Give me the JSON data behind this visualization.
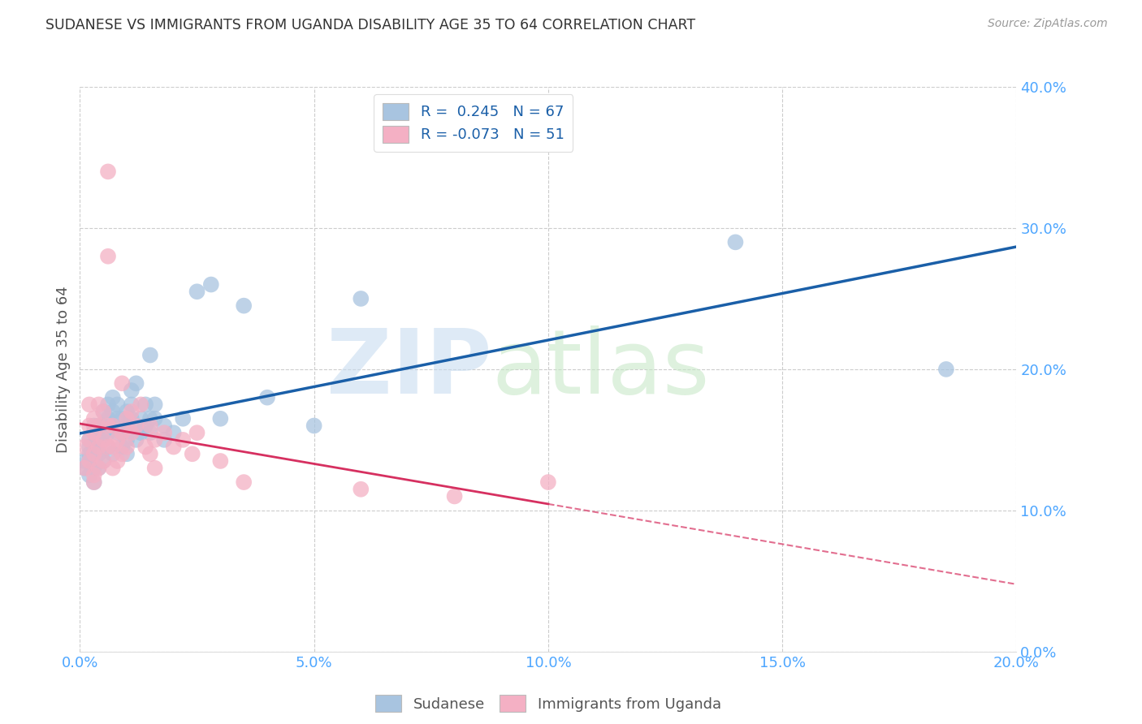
{
  "title": "SUDANESE VS IMMIGRANTS FROM UGANDA DISABILITY AGE 35 TO 64 CORRELATION CHART",
  "source": "Source: ZipAtlas.com",
  "ylabel": "Disability Age 35 to 64",
  "xlim": [
    0.0,
    0.2
  ],
  "ylim": [
    0.0,
    0.4
  ],
  "xticks": [
    0.0,
    0.05,
    0.1,
    0.15,
    0.2
  ],
  "yticks": [
    0.0,
    0.1,
    0.2,
    0.3,
    0.4
  ],
  "legend": {
    "blue_R": 0.245,
    "blue_N": 67,
    "pink_R": -0.073,
    "pink_N": 51
  },
  "blue_scatter_x": [
    0.001,
    0.001,
    0.002,
    0.002,
    0.002,
    0.002,
    0.002,
    0.003,
    0.003,
    0.003,
    0.003,
    0.003,
    0.004,
    0.004,
    0.004,
    0.004,
    0.004,
    0.005,
    0.005,
    0.005,
    0.005,
    0.006,
    0.006,
    0.006,
    0.006,
    0.007,
    0.007,
    0.007,
    0.007,
    0.008,
    0.008,
    0.008,
    0.009,
    0.009,
    0.009,
    0.01,
    0.01,
    0.01,
    0.01,
    0.011,
    0.011,
    0.011,
    0.012,
    0.012,
    0.012,
    0.013,
    0.013,
    0.014,
    0.014,
    0.015,
    0.015,
    0.015,
    0.016,
    0.016,
    0.018,
    0.018,
    0.02,
    0.022,
    0.025,
    0.028,
    0.03,
    0.035,
    0.04,
    0.05,
    0.06,
    0.14,
    0.185
  ],
  "blue_scatter_y": [
    0.13,
    0.135,
    0.14,
    0.145,
    0.135,
    0.125,
    0.15,
    0.145,
    0.13,
    0.12,
    0.155,
    0.16,
    0.14,
    0.13,
    0.15,
    0.16,
    0.145,
    0.17,
    0.155,
    0.135,
    0.16,
    0.145,
    0.155,
    0.165,
    0.175,
    0.14,
    0.16,
    0.17,
    0.18,
    0.155,
    0.165,
    0.175,
    0.145,
    0.155,
    0.165,
    0.14,
    0.15,
    0.16,
    0.17,
    0.165,
    0.175,
    0.185,
    0.15,
    0.16,
    0.19,
    0.155,
    0.165,
    0.16,
    0.175,
    0.155,
    0.165,
    0.21,
    0.165,
    0.175,
    0.15,
    0.16,
    0.155,
    0.165,
    0.255,
    0.26,
    0.165,
    0.245,
    0.18,
    0.16,
    0.25,
    0.29,
    0.2
  ],
  "pink_scatter_x": [
    0.001,
    0.001,
    0.002,
    0.002,
    0.002,
    0.002,
    0.003,
    0.003,
    0.003,
    0.003,
    0.003,
    0.004,
    0.004,
    0.004,
    0.004,
    0.005,
    0.005,
    0.005,
    0.006,
    0.006,
    0.006,
    0.006,
    0.007,
    0.007,
    0.007,
    0.008,
    0.008,
    0.009,
    0.009,
    0.009,
    0.01,
    0.01,
    0.011,
    0.011,
    0.012,
    0.013,
    0.014,
    0.015,
    0.015,
    0.016,
    0.016,
    0.018,
    0.02,
    0.022,
    0.024,
    0.025,
    0.03,
    0.035,
    0.06,
    0.08,
    0.1
  ],
  "pink_scatter_y": [
    0.13,
    0.145,
    0.135,
    0.15,
    0.16,
    0.175,
    0.14,
    0.125,
    0.155,
    0.165,
    0.12,
    0.145,
    0.13,
    0.16,
    0.175,
    0.135,
    0.15,
    0.17,
    0.145,
    0.16,
    0.34,
    0.28,
    0.13,
    0.145,
    0.16,
    0.135,
    0.15,
    0.14,
    0.155,
    0.19,
    0.145,
    0.165,
    0.155,
    0.17,
    0.16,
    0.175,
    0.145,
    0.14,
    0.16,
    0.15,
    0.13,
    0.155,
    0.145,
    0.15,
    0.14,
    0.155,
    0.135,
    0.12,
    0.115,
    0.11,
    0.12
  ],
  "blue_color": "#a8c4e0",
  "pink_color": "#f4b0c4",
  "blue_line_color": "#1a5fa8",
  "pink_line_color": "#d63060",
  "grid_color": "#cccccc",
  "background_color": "#ffffff",
  "tick_label_color": "#4da6ff",
  "title_color": "#333333"
}
